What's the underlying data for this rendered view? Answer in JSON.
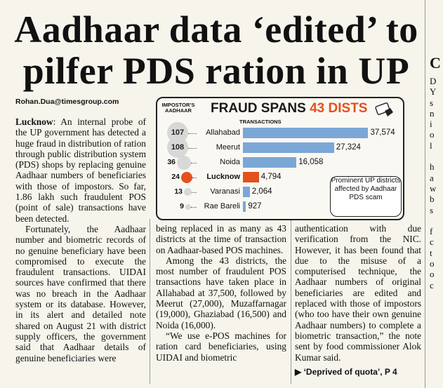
{
  "headline": {
    "line1": "Aadhaar data ‘edited’ to",
    "line2": "pilfer PDS ration in UP"
  },
  "byline": "Rohan.Dua@timesgroup.com",
  "column1": {
    "dateline": "Lucknow",
    "para1": ": An internal probe of the UP government has detected a huge fraud in distribution of ration through public distribution system (PDS) shops by replacing genuine Aadhaar numbers of beneficiaries with those of impostors. So far, 1.86 lakh such fraudulent POS (point of sale) transactions have been detected.",
    "para2": "Fortunately, the Aadhaar number and biometric records of no genuine beneficiary have been compromised to execute the fraudulent transactions. UIDAI sources have confirmed that there was no breach in the Aadhaar system or its database. However, in its alert and detailed note shared on August 21 with district supply officers, the government said that Aadhaar details of genuine beneficiaries were"
  },
  "column2": {
    "para1": "being replaced in as many as 43 districts at the time of transaction on Aadhaar-based POS machines.",
    "para2": "Among the 43 districts, the most number of fraudulent POS transactions have taken place in Allahabad at 37,500, followed by Meerut (27,000), Muzaffarnagar (19,000), Ghaziabad (16,500) and Noida (16,000).",
    "para3": "“We use e-POS machines for ration card beneficiaries, using UIDAI and biometric"
  },
  "column3": {
    "para1": "authentication with due verification from the NIC. However, it has been found that due to the misuse of a computerised technique, the Aadhaar numbers of original beneficiaries are edited and replaced with those of impostors (who too have their own genuine Aadhaar numbers) to complete a biometric transaction,” the note sent by food commissioner Alok Kumar said.",
    "jump": "‘Deprived of quota’, P 4"
  },
  "right_strip": [
    "C",
    "D",
    "Y",
    "s",
    "n",
    "i",
    "o",
    "l",
    "",
    "h",
    "a",
    "w",
    "b",
    "s",
    "",
    "f",
    "c",
    "t",
    "o",
    "o",
    "c"
  ],
  "chart": {
    "title_prefix": "FRAUD SPANS ",
    "title_num": "43 DISTS",
    "left_header": "IMPOSTOR’S AADHAAR",
    "right_header": "TRANSACTIONS",
    "note": "Prominent UP districts affected by Aadhaar PDS scam",
    "colors": {
      "bar": "#7ba7d6",
      "highlight": "#e4501c",
      "title_num": "#e4501c"
    }
  },
  "chart_data": {
    "type": "bar",
    "title": "FRAUD SPANS 43 DISTS",
    "categories": [
      "Allahabad",
      "Meerut",
      "Noida",
      "Lucknow",
      "Varanasi",
      "Rae Bareli"
    ],
    "series": [
      {
        "name": "TRANSACTIONS",
        "values": [
          37574,
          27324,
          16058,
          4794,
          2064,
          927
        ],
        "labels": [
          "37,574",
          "27,324",
          "16,058",
          "4,794",
          "2,064",
          "927"
        ]
      },
      {
        "name": "IMPOSTOR’S AADHAAR",
        "values": [
          107,
          108,
          36,
          24,
          13,
          9
        ]
      }
    ],
    "highlight": "Lucknow",
    "xlim": [
      0,
      40000
    ]
  }
}
